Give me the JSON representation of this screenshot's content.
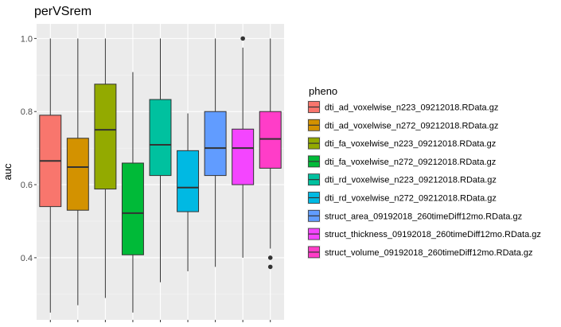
{
  "chart_data": {
    "type": "boxplot",
    "title": "perVSrem",
    "xlabel": "",
    "ylabel": "auc",
    "ylim": [
      0.23,
      1.04
    ],
    "yticks": [
      0.4,
      0.6,
      0.8,
      1.0
    ],
    "ytick_labels": [
      "0.4",
      "0.6",
      "0.8",
      "1.0"
    ],
    "grid": true,
    "legend_title": "pheno",
    "legend_position": "right",
    "series": [
      {
        "name": "dti_ad_voxelwise_n223_09212018.RData.gz",
        "color": "#F8766D",
        "whisker_low": 0.25,
        "q1": 0.54,
        "median": 0.665,
        "q3": 0.79,
        "whisker_high": 1.0,
        "outliers": []
      },
      {
        "name": "dti_ad_voxelwise_n272_09212018.RData.gz",
        "color": "#D39200",
        "whisker_low": 0.27,
        "q1": 0.53,
        "median": 0.648,
        "q3": 0.727,
        "whisker_high": 1.0,
        "outliers": []
      },
      {
        "name": "dti_fa_voxelwise_n223_09212018.RData.gz",
        "color": "#93AA00",
        "whisker_low": 0.29,
        "q1": 0.588,
        "median": 0.75,
        "q3": 0.875,
        "whisker_high": 1.0,
        "outliers": []
      },
      {
        "name": "dti_fa_voxelwise_n272_09212018.RData.gz",
        "color": "#00BA38",
        "whisker_low": 0.25,
        "q1": 0.408,
        "median": 0.522,
        "q3": 0.659,
        "whisker_high": 0.908,
        "outliers": []
      },
      {
        "name": "dti_rd_voxelwise_n223_09212018.RData.gz",
        "color": "#00C19F",
        "whisker_low": 0.333,
        "q1": 0.625,
        "median": 0.709,
        "q3": 0.833,
        "whisker_high": 1.0,
        "outliers": []
      },
      {
        "name": "dti_rd_voxelwise_n272_09212018.RData.gz",
        "color": "#00B9E3",
        "whisker_low": 0.363,
        "q1": 0.526,
        "median": 0.592,
        "q3": 0.693,
        "whisker_high": 0.795,
        "outliers": []
      },
      {
        "name": "struct_area_09192018_260timeDiff12mo.RData.gz",
        "color": "#619CFF",
        "whisker_low": 0.375,
        "q1": 0.625,
        "median": 0.7,
        "q3": 0.8,
        "whisker_high": 1.0,
        "outliers": []
      },
      {
        "name": "struct_thickness_09192018_260timeDiff12mo.RData.gz",
        "color": "#F445FF",
        "whisker_low": 0.4,
        "q1": 0.6,
        "median": 0.7,
        "q3": 0.752,
        "whisker_high": 0.975,
        "outliers": [
          1.0
        ]
      },
      {
        "name": "struct_volume_09192018_260timeDiff12mo.RData.gz",
        "color": "#FF3DC8",
        "whisker_low": 0.425,
        "q1": 0.645,
        "median": 0.725,
        "q3": 0.8,
        "whisker_high": 1.0,
        "outliers": [
          0.4,
          0.375
        ]
      }
    ]
  }
}
